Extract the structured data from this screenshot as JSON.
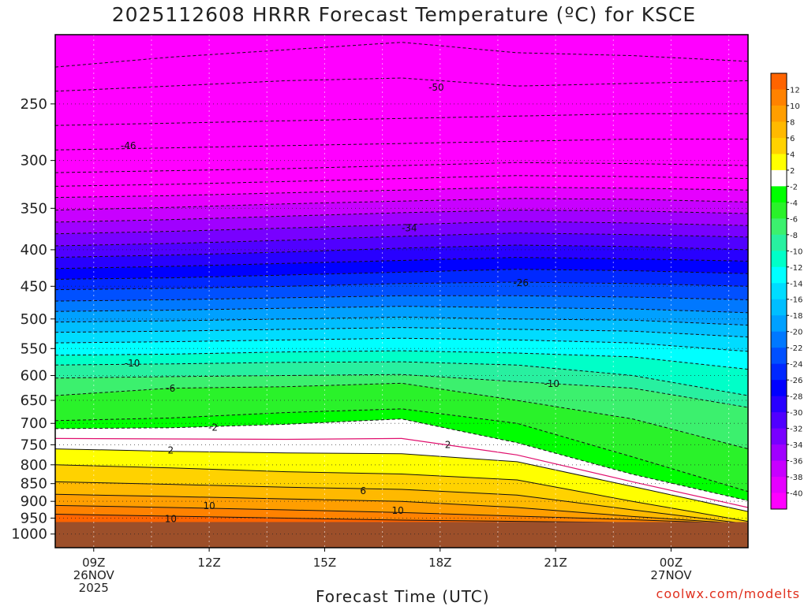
{
  "title": "2025112608 HRRR Forecast Temperature (ºC) for KSCE",
  "credit": "coolwx.com/modelts",
  "chart_data": {
    "type": "heatmap",
    "title": "2025112608 HRRR Forecast Temperature (ºC) for KSCE",
    "xlabel": "Forecast Time (UTC)",
    "ylabel": "",
    "y_log_scale": true,
    "y_range_hpa": [
      200,
      1045
    ],
    "x_range_hours_since_26NOV_00Z": [
      8,
      26
    ],
    "y_ticks": [
      250,
      300,
      350,
      400,
      450,
      500,
      550,
      600,
      650,
      700,
      750,
      800,
      850,
      900,
      950,
      1000
    ],
    "x_ticks": [
      {
        "h": 9,
        "lines": [
          "09Z",
          "26NOV",
          "2025"
        ]
      },
      {
        "h": 12,
        "lines": [
          "12Z"
        ]
      },
      {
        "h": 15,
        "lines": [
          "15Z"
        ]
      },
      {
        "h": 18,
        "lines": [
          "18Z"
        ]
      },
      {
        "h": 21,
        "lines": [
          "21Z"
        ]
      },
      {
        "h": 24,
        "lines": [
          "00Z",
          "27NOV"
        ]
      }
    ],
    "grid": true,
    "ground_pressure_hpa": 962,
    "ground_color": "#9c4f2a",
    "colorbar": [
      {
        "lo": 12,
        "hi": 14,
        "color": "#ff6400"
      },
      {
        "lo": 10,
        "hi": 12,
        "color": "#ff8200"
      },
      {
        "lo": 8,
        "hi": 10,
        "color": "#ff9e00"
      },
      {
        "lo": 6,
        "hi": 8,
        "color": "#ffb900"
      },
      {
        "lo": 4,
        "hi": 6,
        "color": "#ffd200"
      },
      {
        "lo": 2,
        "hi": 4,
        "color": "#ffff00"
      },
      {
        "lo": -2,
        "hi": 2,
        "color": "#ffffff"
      },
      {
        "lo": -4,
        "hi": -2,
        "color": "#00ff00"
      },
      {
        "lo": -6,
        "hi": -4,
        "color": "#2af22a"
      },
      {
        "lo": -8,
        "hi": -6,
        "color": "#3cf06e"
      },
      {
        "lo": -10,
        "hi": -8,
        "color": "#28f0a0"
      },
      {
        "lo": -12,
        "hi": -10,
        "color": "#00ffc8"
      },
      {
        "lo": -14,
        "hi": -12,
        "color": "#00ffff"
      },
      {
        "lo": -16,
        "hi": -14,
        "color": "#00dcff"
      },
      {
        "lo": -18,
        "hi": -16,
        "color": "#00beff"
      },
      {
        "lo": -20,
        "hi": -18,
        "color": "#00a0ff"
      },
      {
        "lo": -22,
        "hi": -20,
        "color": "#0078ff"
      },
      {
        "lo": -24,
        "hi": -22,
        "color": "#0050ff"
      },
      {
        "lo": -26,
        "hi": -24,
        "color": "#0028ff"
      },
      {
        "lo": -28,
        "hi": -26,
        "color": "#0000ff"
      },
      {
        "lo": -30,
        "hi": -28,
        "color": "#2800ff"
      },
      {
        "lo": -32,
        "hi": -30,
        "color": "#5000ff"
      },
      {
        "lo": -34,
        "hi": -32,
        "color": "#7800ff"
      },
      {
        "lo": -36,
        "hi": -34,
        "color": "#a000ff"
      },
      {
        "lo": -38,
        "hi": -36,
        "color": "#c800ff"
      },
      {
        "lo": -40,
        "hi": -38,
        "color": "#e600ff"
      },
      {
        "lo": -46,
        "hi": -40,
        "color": "#ff00ff"
      }
    ],
    "colorbar_labels": [
      12,
      10,
      8,
      6,
      4,
      2,
      -2,
      -4,
      -6,
      -8,
      -10,
      -12,
      -14,
      -16,
      -18,
      -20,
      -22,
      -24,
      -26,
      -28,
      -30,
      -32,
      -34,
      -36,
      -38,
      -40
    ],
    "isotherm_levels": [
      {
        "t": 12,
        "p": [
          938,
          944,
          950,
          956,
          960,
          964,
          968
        ]
      },
      {
        "t": 10,
        "p": [
          912,
          918,
          925,
          933,
          944,
          955,
          968
        ]
      },
      {
        "t": 8,
        "p": [
          880,
          886,
          893,
          900,
          918,
          945,
          968
        ]
      },
      {
        "t": 6,
        "p": [
          845,
          852,
          860,
          866,
          882,
          925,
          968
        ]
      },
      {
        "t": 4,
        "p": [
          800,
          808,
          818,
          824,
          840,
          900,
          960
        ]
      },
      {
        "t": 2,
        "p": [
          760,
          766,
          770,
          772,
          792,
          858,
          930
        ]
      },
      {
        "t": 0,
        "p": [
          735,
          736,
          737,
          735,
          775,
          845,
          918
        ]
      },
      {
        "t": -2,
        "p": [
          712,
          710,
          702,
          690,
          745,
          825,
          898
        ]
      },
      {
        "t": -4,
        "p": [
          694,
          688,
          676,
          668,
          700,
          780,
          872
        ]
      },
      {
        "t": -6,
        "p": [
          640,
          625,
          622,
          615,
          650,
          690,
          760
        ]
      },
      {
        "t": -8,
        "p": [
          605,
          602,
          600,
          598,
          612,
          625,
          665
        ]
      },
      {
        "t": -10,
        "p": [
          580,
          578,
          575,
          574,
          580,
          600,
          640
        ]
      },
      {
        "t": -12,
        "p": [
          562,
          560,
          556,
          554,
          558,
          565,
          588
        ]
      },
      {
        "t": -14,
        "p": [
          540,
          538,
          535,
          532,
          535,
          540,
          555
        ]
      },
      {
        "t": -16,
        "p": [
          522,
          520,
          517,
          514,
          517,
          520,
          530
        ]
      },
      {
        "t": -18,
        "p": [
          505,
          503,
          500,
          497,
          500,
          502,
          510
        ]
      },
      {
        "t": -20,
        "p": [
          488,
          486,
          483,
          480,
          482,
          484,
          490
        ]
      },
      {
        "t": -22,
        "p": [
          472,
          470,
          467,
          464,
          464,
          466,
          470
        ]
      },
      {
        "t": -24,
        "p": [
          455,
          453,
          450,
          446,
          444,
          446,
          450
        ]
      },
      {
        "t": -26,
        "p": [
          440,
          438,
          434,
          430,
          426,
          428,
          432
        ]
      },
      {
        "t": -28,
        "p": [
          425,
          422,
          418,
          414,
          410,
          412,
          415
        ]
      },
      {
        "t": -30,
        "p": [
          410,
          407,
          403,
          398,
          394,
          396,
          400
        ]
      },
      {
        "t": -32,
        "p": [
          395,
          392,
          388,
          383,
          379,
          381,
          384
        ]
      },
      {
        "t": -34,
        "p": [
          380,
          377,
          373,
          369,
          365,
          367,
          370
        ]
      },
      {
        "t": -36,
        "p": [
          366,
          363,
          359,
          355,
          352,
          353,
          356
        ]
      },
      {
        "t": -38,
        "p": [
          352,
          349,
          345,
          342,
          339,
          340,
          343
        ]
      },
      {
        "t": -40,
        "p": [
          338,
          336,
          333,
          330,
          327,
          328,
          330
        ]
      },
      {
        "t": -42,
        "p": [
          326,
          324,
          321,
          318,
          315,
          316,
          318
        ]
      },
      {
        "t": -44,
        "p": [
          312,
          310,
          308,
          305,
          302,
          303,
          305
        ]
      },
      {
        "t": -46,
        "p": [
          290,
          288,
          286,
          284,
          282,
          280,
          280
        ]
      },
      {
        "t": -48,
        "p": [
          268,
          266,
          264,
          262,
          260,
          258,
          258
        ]
      },
      {
        "t": -50,
        "p": [
          240,
          236,
          232,
          230,
          236,
          234,
          232
        ]
      },
      {
        "t": -52,
        "p": [
          222,
          215,
          210,
          205,
          212,
          214,
          218
        ]
      }
    ],
    "isotherm_hours": [
      8,
      11,
      14,
      17,
      20,
      23,
      26
    ],
    "contour_labels": [
      {
        "text": "-50",
        "h": 17.9,
        "p": 237
      },
      {
        "text": "-46",
        "h": 9.9,
        "p": 286
      },
      {
        "text": "-34",
        "h": 17.2,
        "p": 373
      },
      {
        "text": "-26",
        "h": 20.1,
        "p": 445
      },
      {
        "text": "-10",
        "h": 10.0,
        "p": 577
      },
      {
        "text": "-10",
        "h": 20.9,
        "p": 616
      },
      {
        "text": "-6",
        "h": 11.0,
        "p": 626
      },
      {
        "text": "-2",
        "h": 12.1,
        "p": 709
      },
      {
        "text": "2",
        "h": 11.0,
        "p": 764
      },
      {
        "text": "2",
        "h": 18.2,
        "p": 750
      },
      {
        "text": "6",
        "h": 16.0,
        "p": 870
      },
      {
        "text": "10",
        "h": 12.0,
        "p": 913
      },
      {
        "text": "10",
        "h": 16.9,
        "p": 928
      },
      {
        "text": "10",
        "h": 11.0,
        "p": 952
      }
    ]
  }
}
